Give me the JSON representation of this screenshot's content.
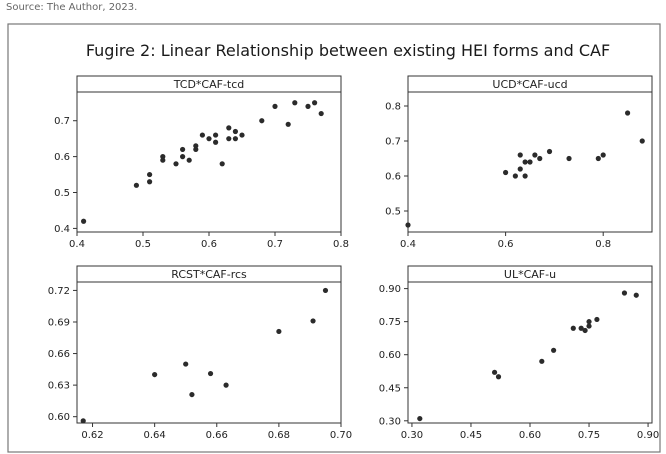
{
  "figure": {
    "top_text": "Source: The Author, 2023.",
    "title": "Fugire 2: Linear Relationship between existing HEI forms and CAF"
  },
  "chart_data": [
    {
      "type": "scatter",
      "title": "TCD*CAF-tcd",
      "xlim": [
        0.4,
        0.8
      ],
      "ylim": [
        0.39,
        0.78
      ],
      "xticks": [
        "0.4",
        "0.5",
        "0.6",
        "0.7",
        "0.8"
      ],
      "yticks": [
        "0.4",
        "0.5",
        "0.6",
        "0.7"
      ],
      "x": [
        0.41,
        0.49,
        0.51,
        0.51,
        0.53,
        0.53,
        0.55,
        0.56,
        0.56,
        0.57,
        0.58,
        0.58,
        0.59,
        0.6,
        0.61,
        0.61,
        0.62,
        0.63,
        0.63,
        0.64,
        0.64,
        0.65,
        0.68,
        0.7,
        0.72,
        0.73,
        0.75,
        0.76,
        0.77
      ],
      "y": [
        0.42,
        0.52,
        0.53,
        0.55,
        0.6,
        0.59,
        0.58,
        0.62,
        0.6,
        0.59,
        0.62,
        0.63,
        0.66,
        0.65,
        0.64,
        0.66,
        0.58,
        0.65,
        0.68,
        0.67,
        0.65,
        0.66,
        0.7,
        0.74,
        0.69,
        0.75,
        0.74,
        0.75,
        0.72
      ]
    },
    {
      "type": "scatter",
      "title": "UCD*CAF-ucd",
      "xlim": [
        0.4,
        0.9
      ],
      "ylim": [
        0.44,
        0.84
      ],
      "xticks": [
        "0.4",
        "0.6",
        "0.8"
      ],
      "yticks": [
        "0.5",
        "0.6",
        "0.7",
        "0.8"
      ],
      "x": [
        0.4,
        0.6,
        0.62,
        0.63,
        0.63,
        0.64,
        0.64,
        0.65,
        0.66,
        0.67,
        0.69,
        0.73,
        0.79,
        0.8,
        0.85,
        0.88
      ],
      "y": [
        0.46,
        0.61,
        0.6,
        0.66,
        0.62,
        0.64,
        0.6,
        0.64,
        0.66,
        0.65,
        0.67,
        0.65,
        0.65,
        0.66,
        0.78,
        0.7
      ]
    },
    {
      "type": "scatter",
      "title": "RCST*CAF-rcs",
      "xlim": [
        0.615,
        0.7
      ],
      "ylim": [
        0.594,
        0.728
      ],
      "xticks": [
        "0.62",
        "0.64",
        "0.66",
        "0.68",
        "0.70"
      ],
      "yticks": [
        "0.60",
        "0.63",
        "0.66",
        "0.69",
        "0.72"
      ],
      "x": [
        0.617,
        0.64,
        0.65,
        0.652,
        0.658,
        0.663,
        0.68,
        0.691,
        0.695
      ],
      "y": [
        0.596,
        0.64,
        0.65,
        0.621,
        0.641,
        0.63,
        0.681,
        0.691,
        0.72
      ]
    },
    {
      "type": "scatter",
      "title": "UL*CAF-u",
      "xlim": [
        0.29,
        0.91
      ],
      "ylim": [
        0.29,
        0.93
      ],
      "xticks": [
        "0.30",
        "0.45",
        "0.60",
        "0.75",
        "0.90"
      ],
      "yticks": [
        "0.30",
        "0.45",
        "0.60",
        "0.75",
        "0.90"
      ],
      "x": [
        0.32,
        0.51,
        0.52,
        0.63,
        0.66,
        0.71,
        0.73,
        0.74,
        0.75,
        0.75,
        0.77,
        0.84,
        0.87
      ],
      "y": [
        0.31,
        0.52,
        0.5,
        0.57,
        0.62,
        0.72,
        0.72,
        0.71,
        0.75,
        0.73,
        0.76,
        0.88,
        0.87
      ]
    }
  ]
}
